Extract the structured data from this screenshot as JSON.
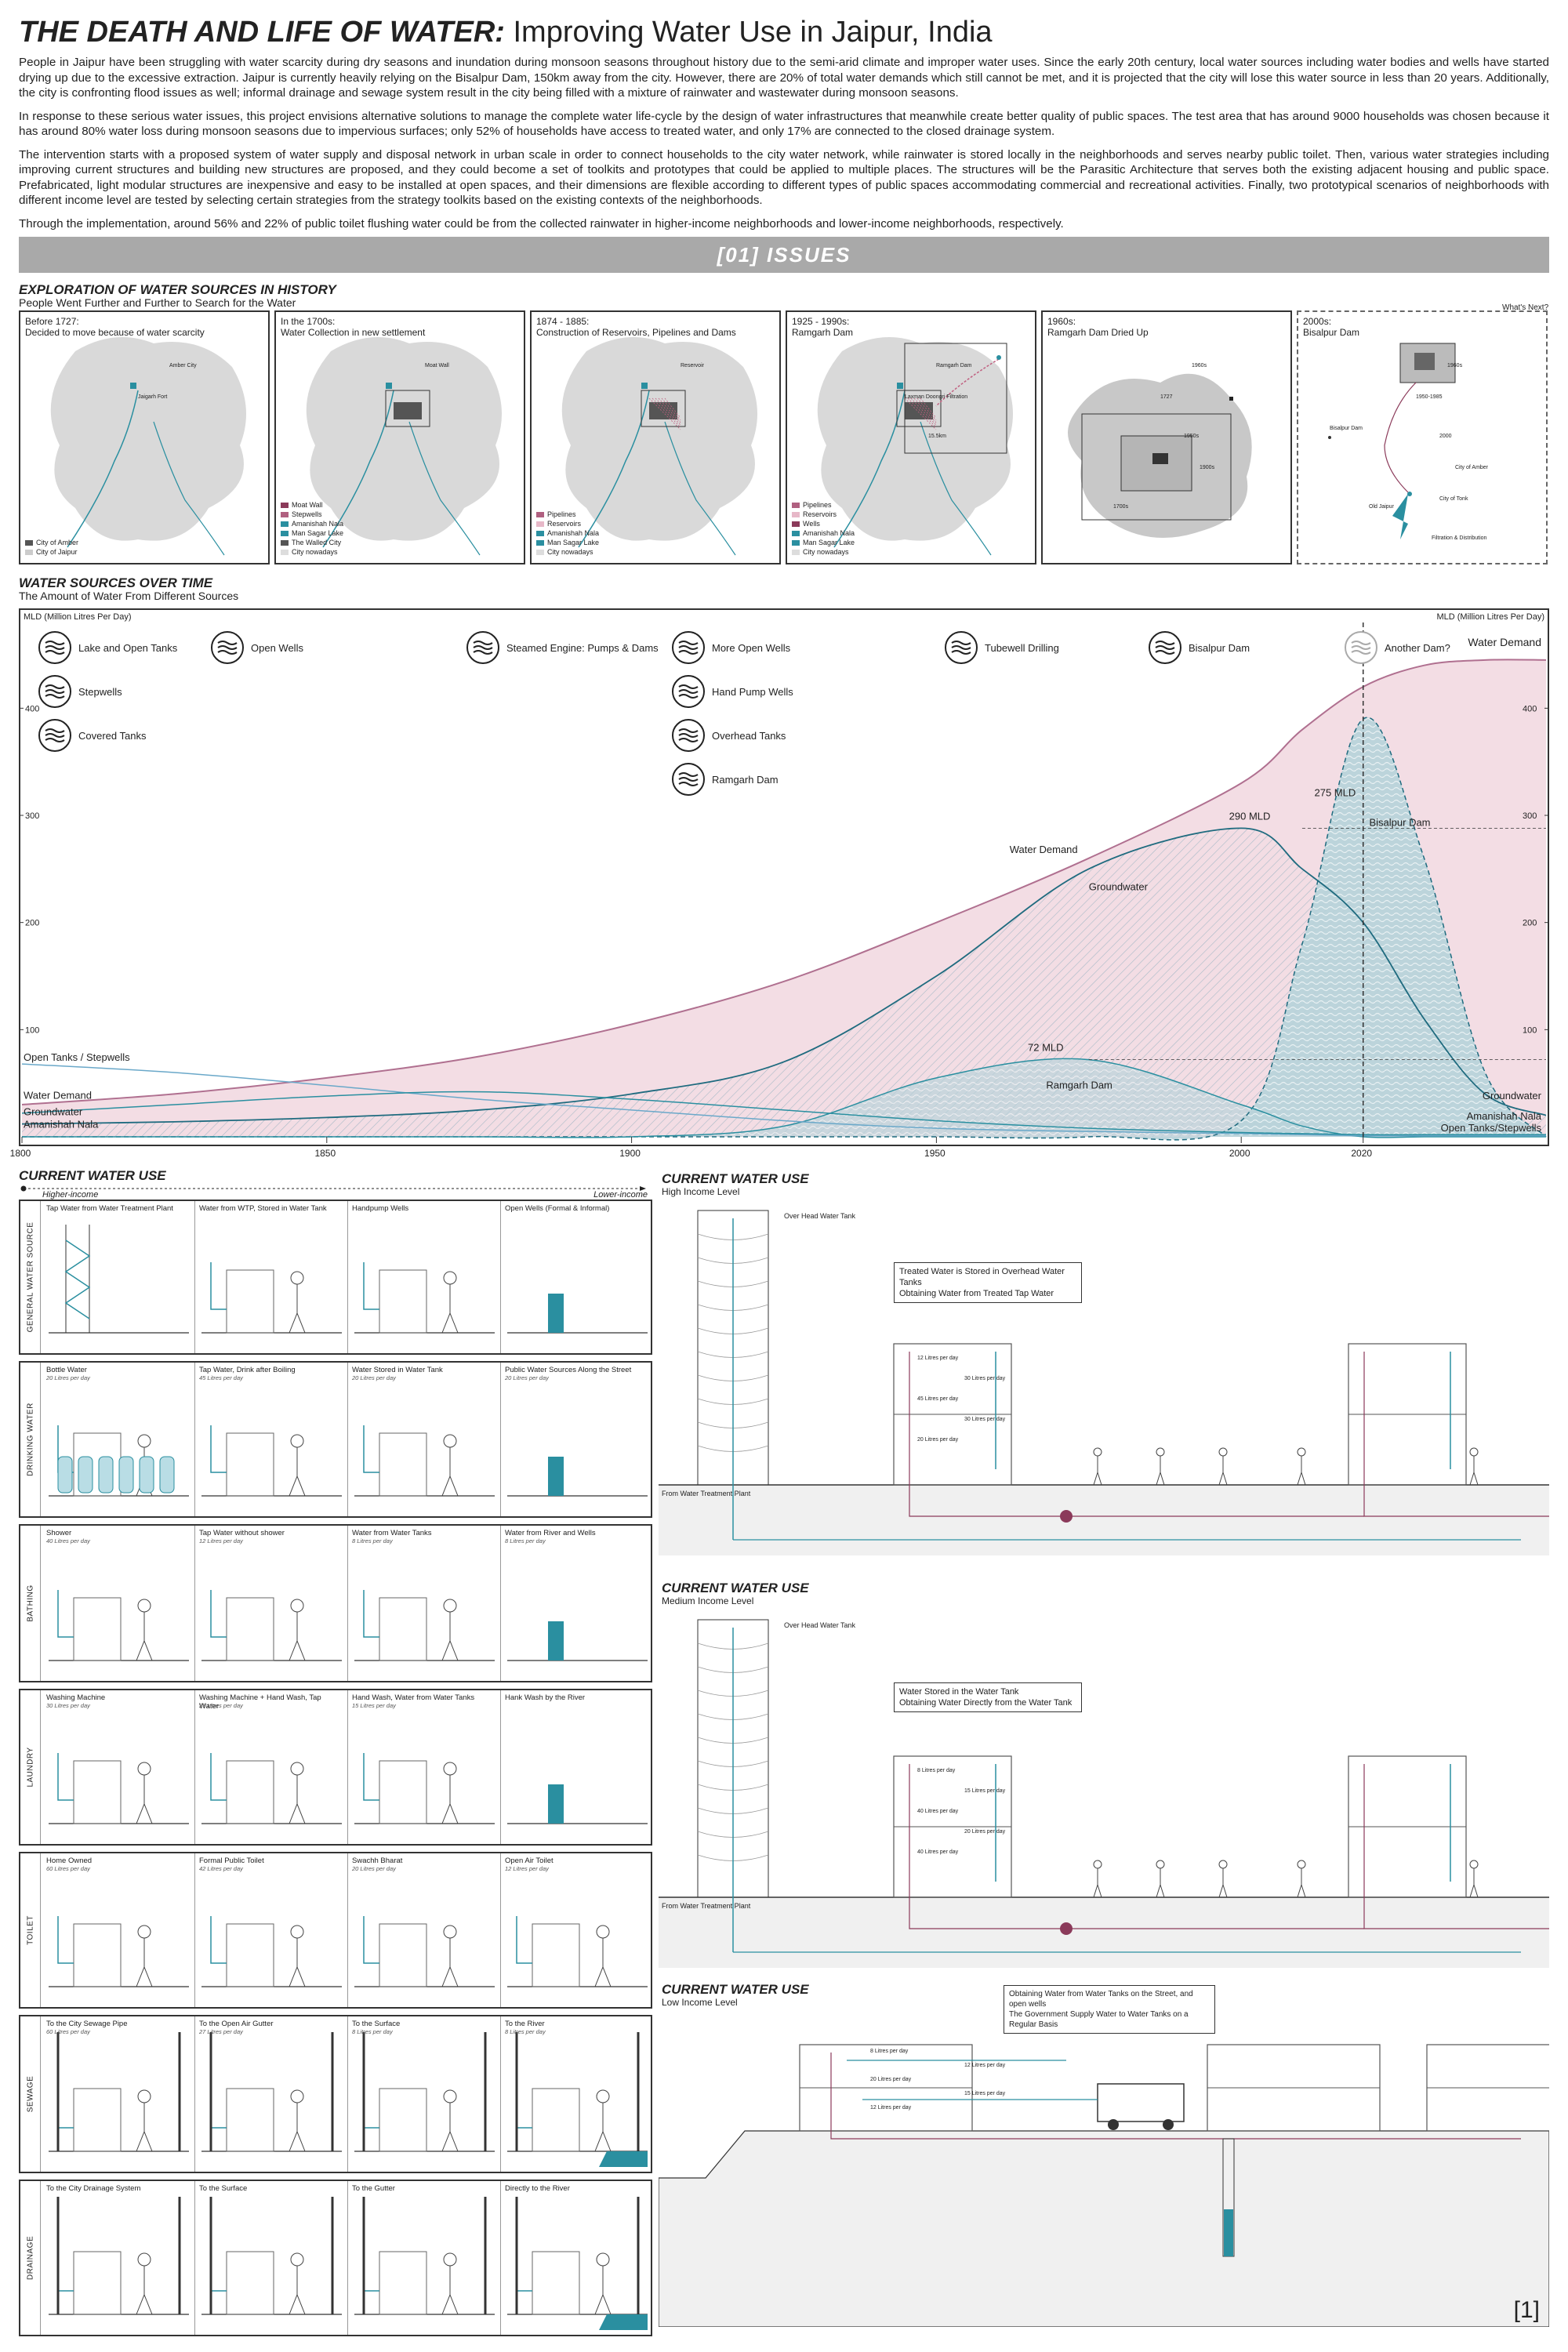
{
  "header": {
    "title_main": "THE DEATH AND LIFE OF WATER:",
    "title_sub": " Improving Water Use in Jaipur, India",
    "paragraphs": [
      "People in Jaipur have been struggling with water scarcity during dry seasons and inundation during monsoon seasons throughout history due to the semi-arid climate and improper water uses. Since the early 20th century, local water sources including water bodies and wells have started drying up due to the excessive extraction. Jaipur is currently heavily relying on the Bisalpur Dam, 150km away from the city. However, there are 20% of total water demands which still cannot be met, and it is projected that the city will lose this water source in less than 20 years. Additionally, the city is confronting flood issues as well; informal drainage and sewage system result in the city being filled with a mixture of rainwater and wastewater during monsoon seasons.",
      "In response to these serious water issues, this project envisions alternative solutions to manage the complete water life-cycle by the design of water infrastructures that meanwhile create better quality of public spaces. The test area that has around 9000 households was chosen because it has around 80% water loss during monsoon seasons due to impervious surfaces; only 52% of households have access to treated water, and only 17% are connected to the closed drainage system.",
      "The intervention starts with a proposed system of water supply and disposal network in urban scale in order to connect households to the city water network, while rainwater is stored locally in the neighborhoods and serves nearby public toilet. Then, various water strategies including improving current structures and building new structures are proposed, and they could become a set of toolkits and prototypes that could be applied to multiple places. The structures will be the Parasitic Architecture that serves both the existing adjacent housing and public space. Prefabricated, light modular structures are inexpensive and easy to be installed at open spaces, and their dimensions are flexible according to different types of public spaces accommodating commercial and recreational activities. Finally, two prototypical scenarios of neighborhoods with different income level are tested by selecting certain strategies from the strategy toolkits based on the existing contexts of the neighborhoods.",
      "Through the implementation, around 56% and 22% of public toilet flushing water could be from the collected rainwater in higher-income neighborhoods and lower-income neighborhoods, respectively."
    ]
  },
  "banner": "[01]   ISSUES",
  "history": {
    "title": "EXPLORATION OF WATER SOURCES IN HISTORY",
    "subtitle": "People Went Further and Further to Search for the Water",
    "whats_next": "What's Next?",
    "panels": [
      {
        "title": "Before 1727:\nDecided to move because of water scarcity",
        "legend": [
          "City of Amber",
          "City of Jaipur"
        ],
        "labels": [
          "Amber City",
          "Jaigarh Fort"
        ]
      },
      {
        "title": "In the 1700s:\nWater Collection in new settlement",
        "legend": [
          "Moat Wall",
          "Stepwells",
          "Amanishah Nala",
          "Man Sagar Lake",
          "The Walled City",
          "City nowadays"
        ],
        "labels": [
          "Moat Wall"
        ]
      },
      {
        "title": "1874 - 1885:\nConstruction of Reservoirs, Pipelines and Dams",
        "legend": [
          "Pipelines",
          "Reservoirs",
          "Amanishah Nala",
          "Man Sagar Lake",
          "City nowadays"
        ],
        "labels": [
          "Reservoir"
        ]
      },
      {
        "title": "1925 - 1990s:\nRamgarh Dam",
        "legend": [
          "Pipelines",
          "Reservoirs",
          "Wells",
          "Amanishah Nala",
          "Man Sagar Lake",
          "City nowadays"
        ],
        "labels": [
          "Ramgarh Dam",
          "Laxman Doongri Filtration",
          "15.5km"
        ]
      },
      {
        "title": "1960s:\nRamgarh Dam Dried Up",
        "legend": [],
        "labels": [
          "1960s",
          "1727",
          "1950s",
          "1900s",
          "1700s"
        ]
      },
      {
        "title": "2000s:\nBisalpur Dam",
        "legend": [],
        "labels": [
          "1960s",
          "1950-1985",
          "2000",
          "City of Amber",
          "Old Jaipur",
          "Filtration & Distribution",
          "Bisalpur Dam",
          "City of Tonk"
        ]
      }
    ]
  },
  "chart_data": {
    "type": "area",
    "title": "WATER SOURCES OVER TIME",
    "subtitle": "The Amount of Water From Different Sources",
    "ylabel": "MLD (Million Litres Per Day)",
    "ylabel_right": "MLD (Million Litres Per Day)",
    "xlim": [
      1800,
      2050
    ],
    "ylim": [
      0,
      480
    ],
    "x_ticks": [
      1800,
      1850,
      1900,
      1950,
      2000,
      2020
    ],
    "y_ticks": [
      100,
      200,
      300,
      400
    ],
    "x": [
      1800,
      1825,
      1850,
      1875,
      1900,
      1925,
      1950,
      1975,
      2000,
      2010,
      2020,
      2030,
      2040,
      2050
    ],
    "series": [
      {
        "name": "Water Demand",
        "values": [
          30,
          40,
          55,
          75,
          105,
          145,
          200,
          260,
          330,
          380,
          420,
          440,
          445,
          445
        ]
      },
      {
        "name": "Groundwater",
        "values": [
          12,
          14,
          18,
          25,
          40,
          70,
          150,
          250,
          288,
          250,
          200,
          110,
          40,
          20
        ]
      },
      {
        "name": "Ramgarh Dam",
        "values": [
          0,
          0,
          0,
          0,
          0,
          10,
          55,
          72,
          30,
          10,
          0,
          0,
          0,
          0
        ]
      },
      {
        "name": "Bisalpur Dam",
        "values": [
          0,
          0,
          0,
          0,
          0,
          0,
          0,
          0,
          15,
          180,
          390,
          260,
          60,
          0
        ]
      },
      {
        "name": "Open Tanks / Stepwells",
        "values": [
          68,
          60,
          48,
          35,
          25,
          15,
          8,
          5,
          3,
          2,
          1,
          1,
          1,
          1
        ]
      },
      {
        "name": "Amanishah Nala",
        "values": [
          22,
          30,
          38,
          42,
          35,
          25,
          15,
          8,
          4,
          3,
          2,
          2,
          2,
          2
        ]
      }
    ],
    "annotations": [
      "290 MLD",
      "275 MLD",
      "72 MLD",
      "Bisalpur Dam",
      "Ramgarh Dam",
      "Groundwater",
      "Water Demand",
      "Open Tanks / Stepwells",
      "Amanishah Nala",
      "Groundwater",
      "Water Demand"
    ],
    "left_labels": [
      "Open Tanks / Stepwells",
      "Water Demand",
      "Groundwater",
      "Amanishah Nala"
    ],
    "icon_labels": [
      "Lake and Open Tanks",
      "Open Wells",
      "Stepwells",
      "Covered Tanks",
      "Steamed Engine: Pumps & Dams",
      "More Open Wells",
      "Hand Pump Wells",
      "Overhead Tanks",
      "Ramgarh Dam",
      "Tubewell Drilling",
      "Bisalpur Dam",
      "Another Dam?"
    ]
  },
  "cwu": {
    "title": "CURRENT WATER USE",
    "higher": "Higher-income",
    "lower": "Lower-income",
    "rows": [
      {
        "label": "GENERAL WATER SOURCE",
        "cells": [
          {
            "t": "Tap Water from Water Treatment Plant",
            "s": ""
          },
          {
            "t": "Water from WTP, Stored in Water Tank",
            "s": ""
          },
          {
            "t": "Handpump Wells",
            "s": ""
          },
          {
            "t": "Open Wells (Formal & Informal)",
            "s": ""
          }
        ]
      },
      {
        "label": "DRINKING WATER",
        "cells": [
          {
            "t": "Bottle Water",
            "s": "20 Litres per day"
          },
          {
            "t": "Tap Water, Drink after Boiling",
            "s": "45 Litres per day"
          },
          {
            "t": "Water Stored in Water Tank",
            "s": "20 Litres per day"
          },
          {
            "t": "Public Water Sources Along the Street",
            "s": "20 Litres per day"
          }
        ]
      },
      {
        "label": "BATHING",
        "cells": [
          {
            "t": "Shower",
            "s": "40 Litres per day"
          },
          {
            "t": "Tap Water without shower",
            "s": "12 Litres per day"
          },
          {
            "t": "Water from Water Tanks",
            "s": "8 Litres per day"
          },
          {
            "t": "Water from River and Wells",
            "s": "8 Litres per day"
          }
        ]
      },
      {
        "label": "LAUNDRY",
        "cells": [
          {
            "t": "Washing Machine",
            "s": "30 Litres per day"
          },
          {
            "t": "Washing Machine + Hand Wash, Tap Water",
            "s": "27 Litres per day"
          },
          {
            "t": "Hand Wash, Water from Water Tanks",
            "s": "15 Litres per day"
          },
          {
            "t": "Hank Wash by the River",
            "s": ""
          }
        ]
      },
      {
        "label": "TOILET",
        "cells": [
          {
            "t": "Home Owned",
            "s": "60 Litres per day"
          },
          {
            "t": "Formal Public Toilet",
            "s": "42 Litres per day"
          },
          {
            "t": "Swachh Bharat",
            "s": "20 Litres per day"
          },
          {
            "t": "Open Air Toilet",
            "s": "12 Litres per day"
          }
        ]
      },
      {
        "label": "SEWAGE",
        "cells": [
          {
            "t": "To the City Sewage Pipe",
            "s": "60 Litres per day"
          },
          {
            "t": "To the Open Air Gutter",
            "s": "27 Litres per day"
          },
          {
            "t": "To the Surface",
            "s": "8 Litres per day"
          },
          {
            "t": "To the River",
            "s": "8 Litres per day"
          }
        ]
      },
      {
        "label": "DRAINAGE",
        "cells": [
          {
            "t": "To the City  Drainage System",
            "s": ""
          },
          {
            "t": "To the Surface",
            "s": ""
          },
          {
            "t": "To the Gutter",
            "s": ""
          },
          {
            "t": "Directly to the River",
            "s": ""
          }
        ]
      }
    ]
  },
  "sections": [
    {
      "title": "CURRENT WATER USE",
      "sub": "High Income Level",
      "note": [
        "Treated Water is Stored in Overhead Water Tanks",
        "Obtaining Water from Treated Tap Water"
      ],
      "tank_label": "Over Head Water Tank",
      "source_label": "From Water Treatment Plant",
      "flows": [
        "12 Litres per day",
        "30 Litres per day",
        "45 Litres per day",
        "30 Litres per day",
        "20 Litres per day"
      ]
    },
    {
      "title": "CURRENT WATER USE",
      "sub": "Medium Income Level",
      "note": [
        "Water Stored in the Water Tank",
        "Obtaining Water Directly from the Water Tank"
      ],
      "tank_label": "Over Head Water Tank",
      "source_label": "From Water Treatment Plant",
      "flows": [
        "8 Litres per day",
        "15 Litres per day",
        "40 Litres per day",
        "20 Litres per day",
        "40 Litres per day"
      ]
    },
    {
      "title": "CURRENT WATER USE",
      "sub": "Low Income Level",
      "note": [
        "Obtaining Water from Water Tanks on the Street, and open wells",
        "The Government Supply Water to Water Tanks on a Regular Basis"
      ],
      "flows": [
        "8 Litres per day",
        "12 Litres per day",
        "20 Litres per day",
        "15 Litres per day",
        "12 Litres per day"
      ]
    }
  ],
  "page_number": "[1]",
  "colors": {
    "teal": "#2a8fa0",
    "maroon": "#8b3a5a",
    "pink_fill": "#f3dde4",
    "grey_map": "#d9d9d9",
    "dark": "#333333"
  }
}
